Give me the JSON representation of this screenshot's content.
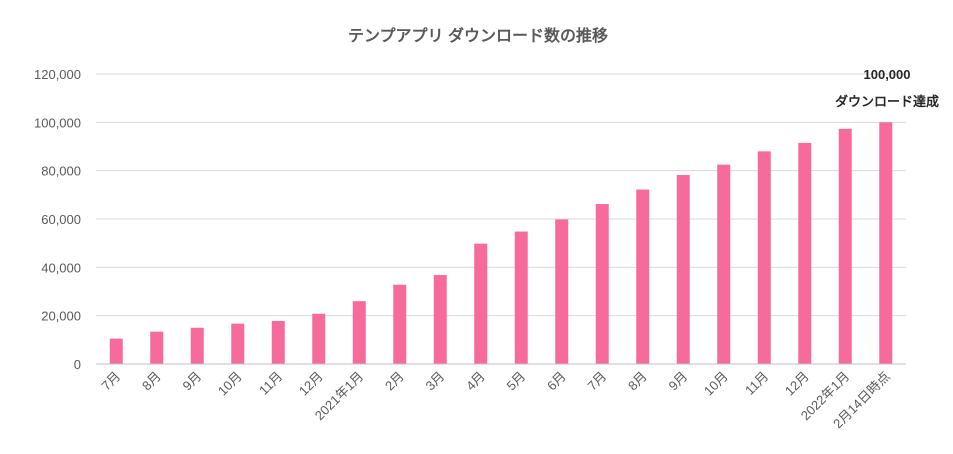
{
  "chart_data": {
    "type": "bar",
    "title": "テンプアプリ ダウンロード数の推移",
    "categories": [
      "7月",
      "8月",
      "9月",
      "10月",
      "11月",
      "12月",
      "2021年1月",
      "2月",
      "3月",
      "4月",
      "5月",
      "6月",
      "7月",
      "8月",
      "9月",
      "10月",
      "11月",
      "12月",
      "2022年1月",
      "2月14日時点"
    ],
    "values": [
      10500,
      13400,
      15000,
      16700,
      17800,
      20800,
      26000,
      32800,
      36800,
      49800,
      54800,
      59800,
      66200,
      72200,
      78200,
      82500,
      88000,
      91500,
      97300,
      100000
    ],
    "ylim": [
      0,
      120000
    ],
    "yticks": [
      0,
      20000,
      40000,
      60000,
      80000,
      100000,
      120000
    ],
    "ytick_labels": [
      "0",
      "20,000",
      "40,000",
      "60,000",
      "80,000",
      "100,000",
      "120,000"
    ],
    "bar_color": "#f76b9c",
    "grid": true,
    "legend": false,
    "annotation": {
      "value_label": "100,000",
      "text": "ダウンロード達成"
    }
  }
}
